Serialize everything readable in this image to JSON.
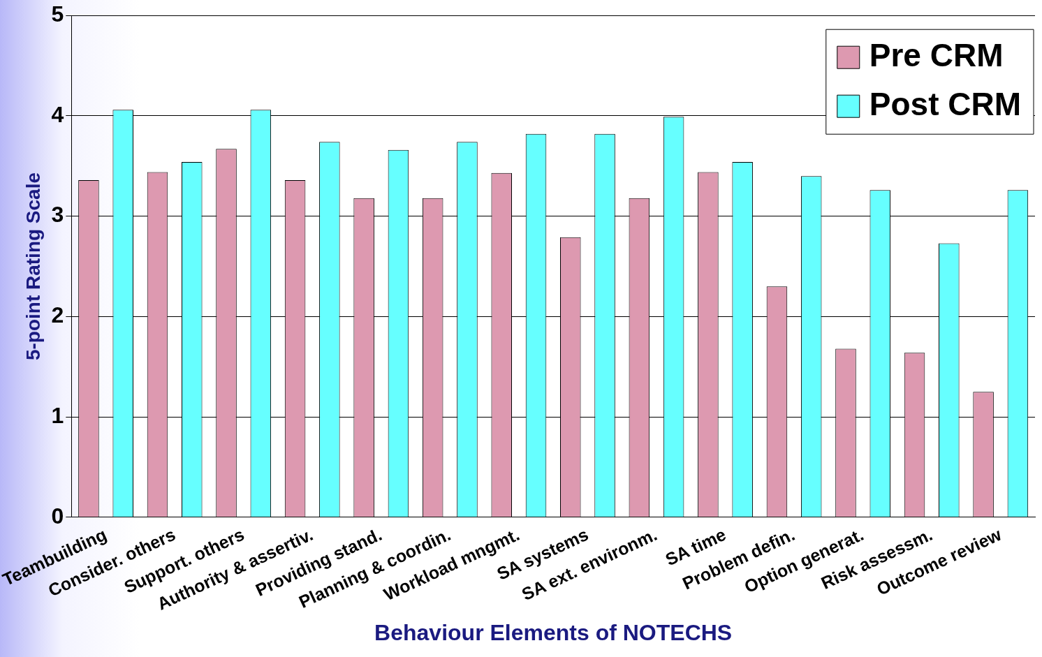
{
  "chart_data": {
    "type": "bar",
    "xlabel": "Behaviour Elements of NOTECHS",
    "ylabel": "5-point Rating Scale",
    "categories": [
      "Teambuilding",
      "Consider. others",
      "Support. others",
      "Authority & assertiv.",
      "Providing stand.",
      "Planning & coordin.",
      "Workload mngmt.",
      "SA systems",
      "SA ext. environm.",
      "SA time",
      "Problem defin.",
      "Option generat.",
      "Risk assessm.",
      "Outcome review"
    ],
    "series": [
      {
        "name": "Pre CRM",
        "color": "#dd99b0",
        "values": [
          3.36,
          3.44,
          3.67,
          3.36,
          3.18,
          3.18,
          3.43,
          2.79,
          3.18,
          3.44,
          2.3,
          1.68,
          1.64,
          1.25
        ]
      },
      {
        "name": "Post CRM",
        "color": "#66ffff",
        "values": [
          4.06,
          3.54,
          4.06,
          3.74,
          3.66,
          3.74,
          3.82,
          3.82,
          3.99,
          3.54,
          3.4,
          3.26,
          2.73,
          3.26
        ]
      }
    ],
    "ylim": [
      0,
      5
    ],
    "yticks": [
      0,
      1,
      2,
      3,
      4,
      5
    ],
    "grid": "y",
    "legend": "top right"
  }
}
